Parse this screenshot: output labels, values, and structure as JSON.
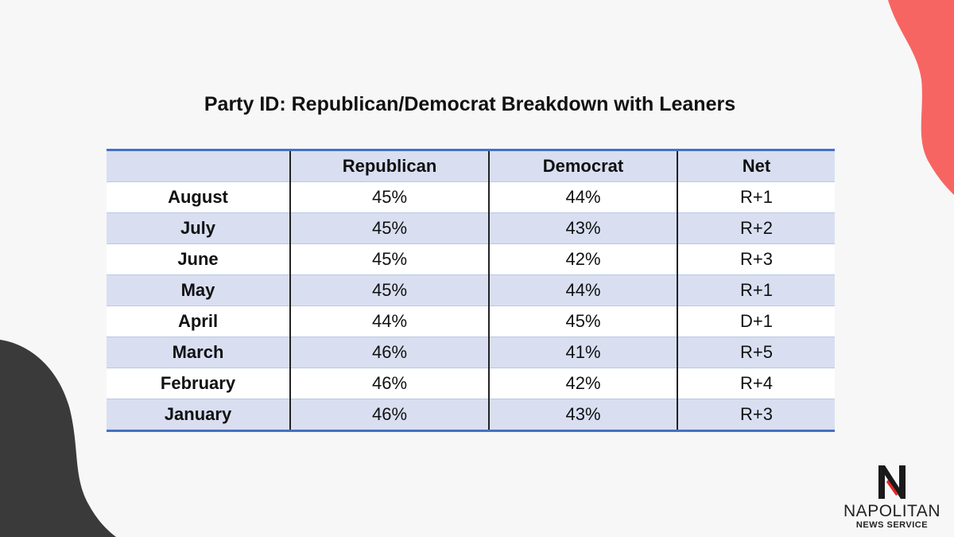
{
  "title": "Party ID: Republican/Democrat Breakdown with Leaners",
  "columns": [
    "",
    "Republican",
    "Democrat",
    "Net"
  ],
  "rows": [
    {
      "month": "August",
      "republican": "45%",
      "democrat": "44%",
      "net": "R+1"
    },
    {
      "month": "July",
      "republican": "45%",
      "democrat": "43%",
      "net": "R+2"
    },
    {
      "month": "June",
      "republican": "45%",
      "democrat": "42%",
      "net": "R+3"
    },
    {
      "month": "May",
      "republican": "45%",
      "democrat": "44%",
      "net": "R+1"
    },
    {
      "month": "April",
      "republican": "44%",
      "democrat": "45%",
      "net": "D+1"
    },
    {
      "month": "March",
      "republican": "46%",
      "democrat": "41%",
      "net": "R+5"
    },
    {
      "month": "February",
      "republican": "46%",
      "democrat": "42%",
      "net": "R+4"
    },
    {
      "month": "January",
      "republican": "46%",
      "democrat": "43%",
      "net": "R+3"
    }
  ],
  "chart_data": {
    "type": "table",
    "title": "Party ID: Republican/Democrat Breakdown with Leaners",
    "categories": [
      "August",
      "July",
      "June",
      "May",
      "April",
      "March",
      "February",
      "January"
    ],
    "series": [
      {
        "name": "Republican",
        "values": [
          45,
          45,
          45,
          45,
          44,
          46,
          46,
          46
        ]
      },
      {
        "name": "Democrat",
        "values": [
          44,
          43,
          42,
          44,
          45,
          41,
          42,
          43
        ]
      },
      {
        "name": "Net",
        "values": [
          "R+1",
          "R+2",
          "R+3",
          "R+1",
          "D+1",
          "R+5",
          "R+4",
          "R+3"
        ]
      }
    ]
  },
  "logo": {
    "letter": "N",
    "name": "NAPOLITAN",
    "subtitle": "NEWS SERVICE"
  },
  "colors": {
    "background": "#f7f7f7",
    "accent_blob": "#f76563",
    "dark_blob": "#3a3a3a",
    "table_border": "#4472c4",
    "row_shade": "#d9dff1",
    "net_republican": "#e02020",
    "net_democrat": "#2f55b0"
  }
}
